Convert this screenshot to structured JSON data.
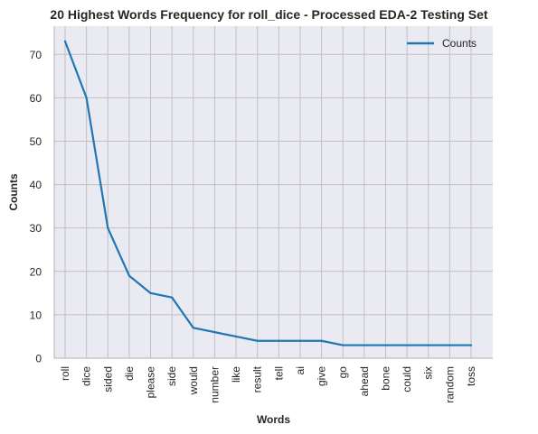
{
  "chart_data": {
    "type": "line",
    "title": "20 Highest Words Frequency for roll_dice - Processed EDA-2 Testing Set",
    "xlabel": "Words",
    "ylabel": "Counts",
    "categories": [
      "roll",
      "dice",
      "sided",
      "die",
      "please",
      "side",
      "would",
      "number",
      "like",
      "result",
      "tell",
      "ai",
      "give",
      "go",
      "ahead",
      "bone",
      "could",
      "six",
      "random",
      "toss"
    ],
    "series": [
      {
        "name": "Counts",
        "color": "#1f77b4",
        "values": [
          73,
          60,
          30,
          19,
          15,
          14,
          7,
          6,
          5,
          4,
          4,
          4,
          4,
          3,
          3,
          3,
          3,
          3,
          3,
          3
        ]
      }
    ],
    "ylim": [
      0,
      76.5
    ],
    "yticks": [
      0,
      10,
      20,
      30,
      40,
      50,
      60,
      70
    ],
    "grid": true,
    "legend_position": "top-right",
    "background_color": "#eaeaf2",
    "grid_color": "#c0c0c0"
  }
}
